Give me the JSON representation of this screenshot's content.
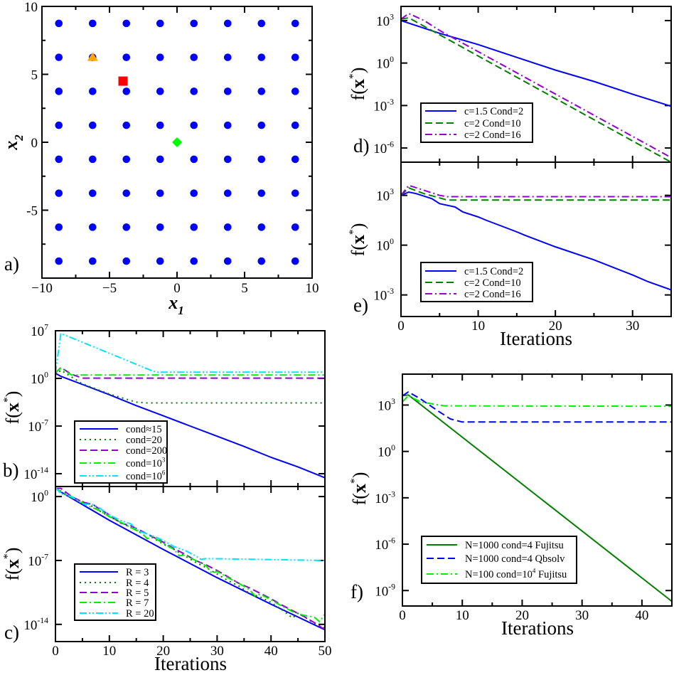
{
  "chart_data": [
    {
      "panel": "a)",
      "type": "scatter",
      "xlabel": "x1",
      "ylabel": "x2",
      "xlim": [
        -10,
        10
      ],
      "ylim": [
        -10,
        10
      ],
      "xticks": [
        -10,
        -5,
        0,
        5,
        10
      ],
      "xtick_labels": [
        "−10",
        "−5",
        "0",
        "5",
        "10"
      ],
      "yticks": [
        10,
        5,
        0,
        -5
      ],
      "ytick_labels": [
        "10",
        "5",
        "0",
        "-5"
      ],
      "grid": false,
      "grid_points": {
        "x": [
          -8.75,
          -6.25,
          -3.75,
          -1.25,
          1.25,
          3.75,
          6.25,
          8.75
        ],
        "y": [
          8.75,
          6.25,
          3.75,
          1.25,
          -1.25,
          -3.75,
          -6.25,
          -8.75
        ],
        "marker": "circle",
        "color": "#0000ff"
      },
      "special_points": [
        {
          "x": -6.25,
          "y": 6.25,
          "marker": "triangle",
          "color": "#ffa500"
        },
        {
          "x": -4,
          "y": 4.5,
          "marker": "square",
          "color": "#ff0000"
        },
        {
          "x": 0,
          "y": 0,
          "marker": "diamond",
          "color": "#00ff00"
        }
      ]
    },
    {
      "panel": "b)",
      "type": "line",
      "yscale": "log",
      "xlabel": "",
      "ylabel": "f(x*)",
      "xlim": [
        0,
        50
      ],
      "ylim": [
        1.3e-16,
        10000000.0
      ],
      "xticks": [
        0,
        10,
        20,
        30,
        40,
        50
      ],
      "xtick_labels": [],
      "yticks": [
        10000000.0,
        1,
        1e-07,
        1e-14
      ],
      "ytick_labels": [
        "10^7",
        "10^0",
        "10^-7",
        "10^-14"
      ],
      "legend": "bottom-left",
      "series": [
        {
          "name": "cond≈15",
          "style": "solid",
          "color": "#0000ff",
          "x": [
            0,
            1,
            5,
            10,
            15,
            20,
            25,
            30,
            35,
            40,
            45,
            50
          ],
          "y": [
            5.6,
            2.0,
            0.13,
            0.004,
            0.0001,
            3.2e-06,
            1e-07,
            3.2e-09,
            1e-10,
            2.5e-12,
            1e-13,
            2.5e-15
          ]
        },
        {
          "name": "cond=20",
          "style": "dotted",
          "color": "#008000",
          "x": [
            0,
            1,
            5,
            10,
            15,
            17,
            50
          ],
          "y": [
            3.2,
            16,
            0.16,
            0.005,
            0.00032,
            0.00025,
            0.00025
          ]
        },
        {
          "name": "cond=200",
          "style": "dashed",
          "color": "#9400d3",
          "x": [
            0,
            1,
            3,
            5,
            50
          ],
          "y": [
            6.3,
            40,
            4,
            1.1,
            1.1
          ]
        },
        {
          "name": "cond=10^3",
          "style": "dashdot",
          "color": "#00ee00",
          "x": [
            0,
            1,
            3,
            50
          ],
          "y": [
            8,
            32,
            3.2,
            3.2
          ]
        },
        {
          "name": "cond=10^6",
          "style": "dashdotdot",
          "color": "#00e5ff",
          "x": [
            0,
            1,
            18,
            19,
            50
          ],
          "y": [
            6.3,
            4000000.0,
            12.6,
            8,
            8
          ]
        }
      ]
    },
    {
      "panel": "c)",
      "type": "line",
      "yscale": "log",
      "xlabel": "Iterations",
      "ylabel": "f(x*)",
      "xlim": [
        0,
        50
      ],
      "ylim": [
        1.3e-16,
        12.6
      ],
      "xticks": [
        0,
        10,
        20,
        30,
        40,
        50
      ],
      "xtick_labels": [
        "0",
        "10",
        "20",
        "30",
        "40",
        "50"
      ],
      "yticks": [
        1,
        1e-07,
        1e-14
      ],
      "ytick_labels": [
        "10^0",
        "10^-7",
        "10^-14"
      ],
      "legend": "bottom-left",
      "series": [
        {
          "name": "R = 3",
          "style": "solid",
          "color": "#0000ff",
          "x": [
            0,
            1,
            10,
            20,
            30,
            40,
            50
          ],
          "y": [
            8,
            3.2,
            0.0025,
            1.6e-06,
            1.3e-09,
            1.6e-12,
            2.5e-15
          ]
        },
        {
          "name": "R = 4",
          "style": "dotted",
          "color": "#008000",
          "x": [
            0,
            2,
            4,
            6,
            8,
            10,
            12,
            14,
            16,
            17,
            18,
            20,
            22,
            24,
            26,
            28,
            30,
            32,
            34,
            36,
            38,
            40,
            42,
            44,
            45,
            46,
            48,
            50
          ],
          "y": [
            7.9,
            2,
            0.5,
            0.16,
            0.032,
            0.0063,
            0.0016,
            0.0004,
            0.0001,
            2.5e-05,
            3.2e-05,
            6.3e-06,
            1.6e-06,
            3.2e-07,
            6.3e-08,
            1.6e-08,
            3.2e-09,
            6.3e-10,
            1.6e-10,
            2.5e-11,
            1e-11,
            2.5e-12,
            4e-13,
            5e-14,
            1.6e-13,
            7.9e-14,
            1.3e-14,
            4e-15
          ]
        },
        {
          "name": "R = 5",
          "style": "dashed",
          "color": "#9400d3",
          "x": [
            0,
            1,
            3,
            5,
            7,
            8,
            10,
            12,
            14,
            16,
            18,
            20,
            22,
            24,
            26,
            28,
            30,
            32,
            34,
            36,
            38,
            40,
            42,
            44,
            46,
            48,
            50
          ],
          "y": [
            7.9,
            7.9,
            1,
            0.25,
            0.13,
            0.05,
            0.01,
            0.0013,
            0.00063,
            0.00016,
            4e-05,
            1e-05,
            2e-06,
            5e-07,
            1e-07,
            3.2e-08,
            7.9e-09,
            1.6e-09,
            3.2e-10,
            1e-10,
            2.5e-11,
            6.3e-12,
            1.3e-12,
            3.2e-13,
            7.9e-14,
            1.6e-14,
            2.5e-15
          ]
        },
        {
          "name": "R = 7",
          "style": "dashdot",
          "color": "#00ee00",
          "x": [
            0,
            1,
            2,
            4,
            6,
            8,
            10,
            12,
            14,
            16,
            17,
            18,
            20,
            22,
            23,
            24,
            26,
            28,
            29,
            30,
            32,
            34,
            36,
            37,
            38,
            40,
            42,
            44,
            46,
            48,
            49,
            50
          ],
          "y": [
            7.9,
            3.2,
            1.6,
            0.4,
            0.1,
            0.032,
            0.0063,
            0.0016,
            0.0004,
            0.0001,
            2.5e-05,
            4e-05,
            7.9e-06,
            1.6e-06,
            3.2e-07,
            4e-07,
            1e-07,
            2.5e-08,
            4e-09,
            6.3e-09,
            1.3e-09,
            3.2e-10,
            6.3e-11,
            1.3e-11,
            2e-11,
            5e-12,
            1e-12,
            2.5e-13,
            1e-13,
            6.3e-14,
            2e-14,
            1.3e-13
          ]
        },
        {
          "name": "R = 20",
          "style": "dashdotdot",
          "color": "#00e5ff",
          "x": [
            0,
            1,
            3,
            5,
            7,
            8,
            10,
            12,
            14,
            15,
            16,
            18,
            20,
            22,
            24,
            26,
            27,
            28,
            50
          ],
          "y": [
            10,
            2,
            1,
            0.16,
            0.13,
            0.063,
            0.01,
            0.0025,
            0.001,
            0.00025,
            0.00013,
            5e-05,
            1.6e-05,
            3.2e-06,
            1.3e-06,
            3.2e-07,
            1.3e-07,
            1.6e-07,
            1e-07
          ]
        }
      ]
    },
    {
      "panel": "d)",
      "type": "line",
      "yscale": "log",
      "xlabel": "",
      "ylabel": "f(x*)",
      "xlim": [
        0,
        35
      ],
      "ylim": [
        1e-07,
        10000.0
      ],
      "xticks": [
        0,
        10,
        20,
        30
      ],
      "xtick_labels": [],
      "yticks": [
        1000,
        1,
        0.001,
        1e-06
      ],
      "ytick_labels": [
        "10^3",
        "10^0",
        "10^-3",
        "10^-6"
      ],
      "legend": "bottom-left",
      "series": [
        {
          "name": "c=1.5  Cond=2",
          "style": "solid",
          "color": "#0000ff",
          "x": [
            0,
            5,
            10,
            15,
            20,
            25,
            30,
            35
          ],
          "y": [
            1000,
            126,
            20,
            2.5,
            0.32,
            0.05,
            0.0063,
            0.00089
          ]
        },
        {
          "name": "c=2    Cond=10",
          "style": "dashed",
          "color": "#008000",
          "x": [
            0,
            1,
            35
          ],
          "y": [
            1260,
            1580,
            1e-07
          ]
        },
        {
          "name": "c=2    Cond=16",
          "style": "dashdot",
          "color": "#9400d3",
          "x": [
            0,
            1,
            3,
            5,
            35
          ],
          "y": [
            1260,
            3160,
            1000,
            200,
            2.1e-07
          ]
        }
      ]
    },
    {
      "panel": "e)",
      "type": "line",
      "yscale": "log",
      "xlabel": "Iterations",
      "ylabel": "f(x*)",
      "xlim": [
        0,
        35
      ],
      "ylim": [
        5e-05,
        100000.0
      ],
      "xticks": [
        0,
        10,
        20,
        30
      ],
      "xtick_labels": [
        "0",
        "10",
        "20",
        "30"
      ],
      "yticks": [
        1000,
        1,
        0.001
      ],
      "ytick_labels": [
        "10^3",
        "10^0",
        "10^-3"
      ],
      "legend": "bottom-left",
      "series": [
        {
          "name": "c=1.5  Cond=2",
          "style": "solid",
          "color": "#0000ff",
          "x": [
            0,
            1,
            2,
            4,
            5,
            7,
            8,
            10,
            11,
            15,
            16,
            20,
            25,
            30,
            32,
            35
          ],
          "y": [
            1000,
            1580,
            1260,
            630,
            316,
            200,
            100,
            50,
            32,
            6.3,
            4,
            0.79,
            0.13,
            0.016,
            0.0063,
            0.002
          ]
        },
        {
          "name": "c=2    Cond=10",
          "style": "dashed",
          "color": "#008000",
          "x": [
            0,
            1,
            3,
            6,
            35
          ],
          "y": [
            1000,
            2800,
            1260,
            525,
            525
          ]
        },
        {
          "name": "c=2    Cond=16",
          "style": "dashdot",
          "color": "#9400d3",
          "x": [
            0,
            1,
            3,
            5,
            6,
            35
          ],
          "y": [
            1000,
            4000,
            2000,
            1000,
            830,
            830
          ]
        }
      ]
    },
    {
      "panel": "f)",
      "type": "line",
      "yscale": "log",
      "xlabel": "Iterations",
      "ylabel": "f(x*)",
      "xlim": [
        0,
        45
      ],
      "ylim": [
        1e-10,
        100000.0
      ],
      "xticks": [
        0,
        10,
        20,
        30,
        40
      ],
      "xtick_labels": [
        "0",
        "10",
        "20",
        "30",
        "40"
      ],
      "yticks": [
        1000,
        1,
        0.001,
        1e-06,
        1e-09
      ],
      "ytick_labels": [
        "10^3",
        "10^0",
        "10^-3",
        "10^-6",
        "10^-9"
      ],
      "legend": "bottom-left",
      "series": [
        {
          "name": "N=1000  cond=4  Fujitsu",
          "style": "solid",
          "color": "#008000",
          "x": [
            0,
            1,
            45
          ],
          "y": [
            4000,
            4500,
            2e-10
          ]
        },
        {
          "name": "N=1000  cond=4  Qbsolv",
          "style": "dashed",
          "color": "#0000ff",
          "x": [
            0,
            1,
            3,
            6,
            8,
            10,
            45
          ],
          "y": [
            4000,
            7100,
            2500,
            400,
            126,
            80,
            80
          ]
        },
        {
          "name": "N=100   cond=10^4 Fujitsu",
          "style": "dashdot",
          "color": "#00ee00",
          "x": [
            0,
            1,
            3,
            7,
            45
          ],
          "y": [
            1600,
            4000,
            1600,
            890,
            830
          ]
        }
      ]
    }
  ]
}
